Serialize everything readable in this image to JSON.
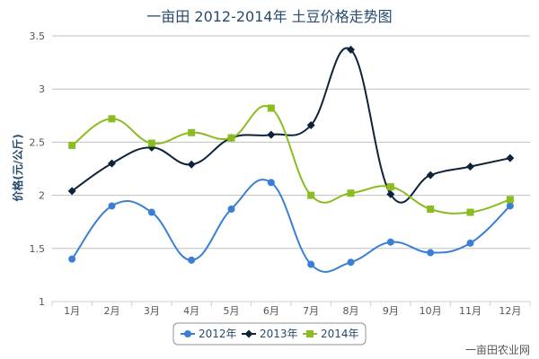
{
  "chart_data": {
    "type": "line",
    "title": "一亩田 2012-2014年 土豆价格走势图",
    "ylabel": "价格(元/公斤)",
    "xlabel": "",
    "categories": [
      "1月",
      "2月",
      "3月",
      "4月",
      "5月",
      "6月",
      "7月",
      "8月",
      "9月",
      "10月",
      "11月",
      "12月"
    ],
    "ylim": [
      1,
      3.5
    ],
    "yticks": [
      "1",
      "1.5",
      "2",
      "2.5",
      "3",
      "3.5"
    ],
    "grid": true,
    "legend_position": "bottom-center",
    "series": [
      {
        "name": "2012年",
        "color": "#3b7fd4",
        "marker": "circle",
        "values": [
          1.4,
          1.9,
          1.84,
          1.39,
          1.87,
          2.12,
          1.35,
          1.37,
          1.56,
          1.46,
          1.55,
          1.9
        ]
      },
      {
        "name": "2013年",
        "color": "#0d233a",
        "marker": "diamond",
        "values": [
          2.04,
          2.3,
          2.45,
          2.29,
          2.54,
          2.57,
          2.66,
          3.37,
          2.01,
          2.19,
          2.27,
          2.35
        ]
      },
      {
        "name": "2014年",
        "color": "#8bbc21",
        "marker": "square",
        "values": [
          2.47,
          2.72,
          2.49,
          2.59,
          2.54,
          2.82,
          2.0,
          2.02,
          2.08,
          1.87,
          1.84,
          1.96
        ]
      }
    ]
  },
  "watermark": "一亩田农业网"
}
